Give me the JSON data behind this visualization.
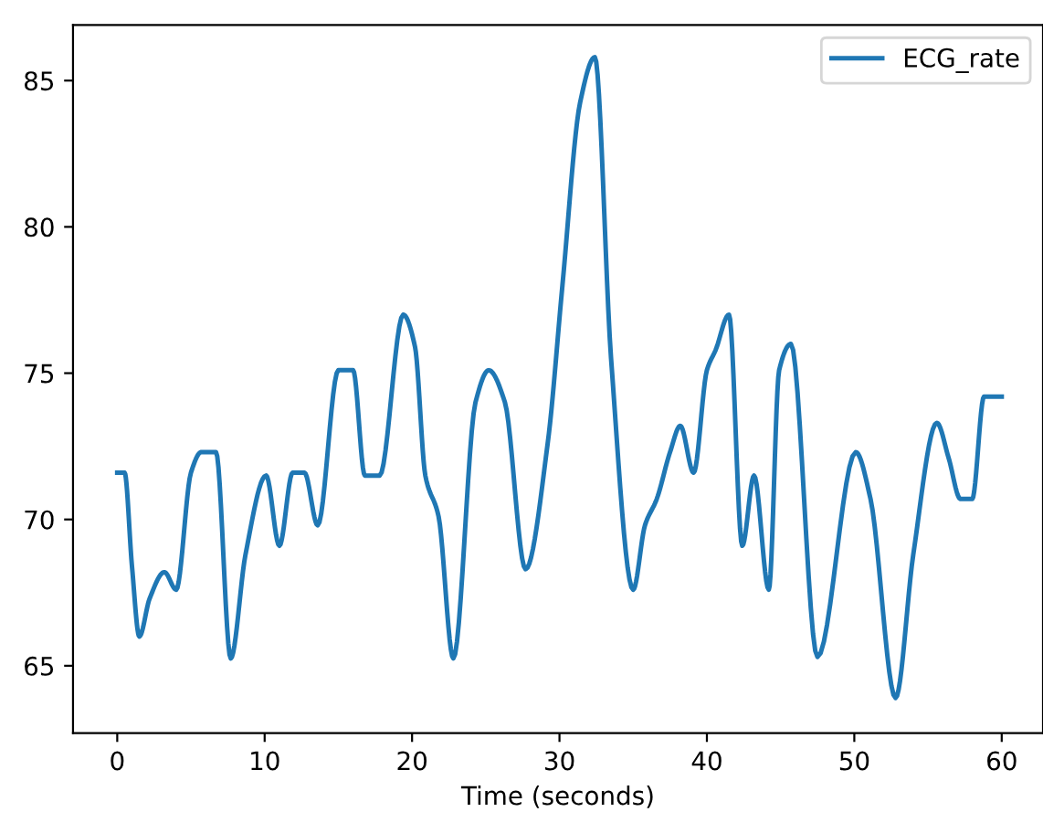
{
  "chart_data": {
    "type": "line",
    "xlabel": "Time (seconds)",
    "xlim": [
      -3,
      62.8
    ],
    "ylim": [
      62.7,
      86.9
    ],
    "xticks": [
      0,
      10,
      20,
      30,
      40,
      50,
      60
    ],
    "yticks": [
      65,
      70,
      75,
      80,
      85
    ],
    "grid": false,
    "legend": "top right",
    "marker": "none",
    "line_style": "solid",
    "series": [
      {
        "name": "ECG_rate",
        "color": "#1f77b4",
        "x": [
          0,
          0.5,
          1.0,
          1.5,
          2.2,
          3.2,
          4.0,
          5.0,
          5.7,
          6.7,
          7.7,
          8.7,
          10.1,
          11.0,
          11.9,
          12.7,
          13.6,
          15.0,
          16.0,
          16.8,
          17.8,
          19.4,
          20.2,
          20.9,
          21.8,
          22.8,
          24.3,
          25.2,
          26.3,
          27.7,
          29.2,
          30.2,
          31.4,
          32.4,
          33.5,
          35.0,
          35.8,
          36.6,
          37.5,
          38.2,
          39.1,
          40.0,
          40.6,
          41.5,
          42.4,
          43.2,
          44.2,
          44.9,
          45.7,
          47.5,
          50.1,
          51.1,
          52.8,
          54.0,
          55.6,
          56.4,
          57.2,
          58.0,
          58.8,
          60.0
        ],
        "values": [
          71.6,
          71.6,
          68.4,
          66.0,
          67.3,
          68.2,
          67.6,
          71.6,
          72.3,
          72.3,
          65.25,
          68.8,
          71.5,
          69.1,
          71.6,
          71.6,
          69.8,
          75.1,
          75.1,
          71.5,
          71.5,
          77.0,
          75.9,
          71.5,
          70.1,
          65.25,
          74.0,
          75.1,
          74.0,
          68.3,
          72.6,
          78.0,
          84.25,
          85.8,
          75.5,
          67.6,
          69.8,
          70.7,
          72.3,
          73.2,
          71.6,
          75.1,
          75.8,
          77.0,
          69.1,
          71.5,
          67.6,
          75.1,
          76.0,
          65.3,
          72.3,
          70.7,
          63.9,
          68.8,
          73.3,
          72.1,
          70.7,
          70.7,
          74.2,
          74.2
        ]
      }
    ]
  }
}
